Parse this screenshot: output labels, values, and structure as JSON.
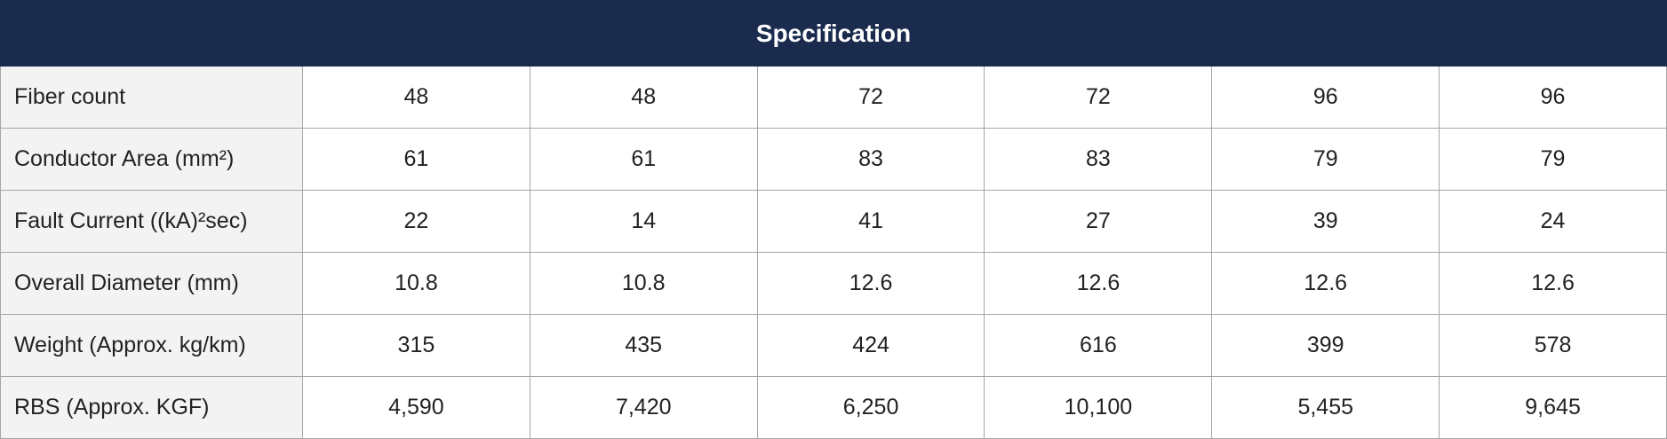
{
  "header": {
    "title": "Specification"
  },
  "table": {
    "rows": [
      [
        "Fiber count",
        "48",
        "48",
        "72",
        "72",
        "96",
        "96"
      ],
      [
        "Conductor Area (mm²)",
        "61",
        "61",
        "83",
        "83",
        "79",
        "79"
      ],
      [
        "Fault Current ((kA)²sec)",
        "22",
        "14",
        "41",
        "27",
        "39",
        "24"
      ],
      [
        "Overall Diameter (mm)",
        "10.8",
        "10.8",
        "12.6",
        "12.6",
        "12.6",
        "12.6"
      ],
      [
        "Weight (Approx. kg/km)",
        "315",
        "435",
        "424",
        "616",
        "399",
        "578"
      ],
      [
        "RBS (Approx. KGF)",
        "4,590",
        "7,420",
        "6,250",
        "10,100",
        "5,455",
        "9,645"
      ]
    ]
  }
}
